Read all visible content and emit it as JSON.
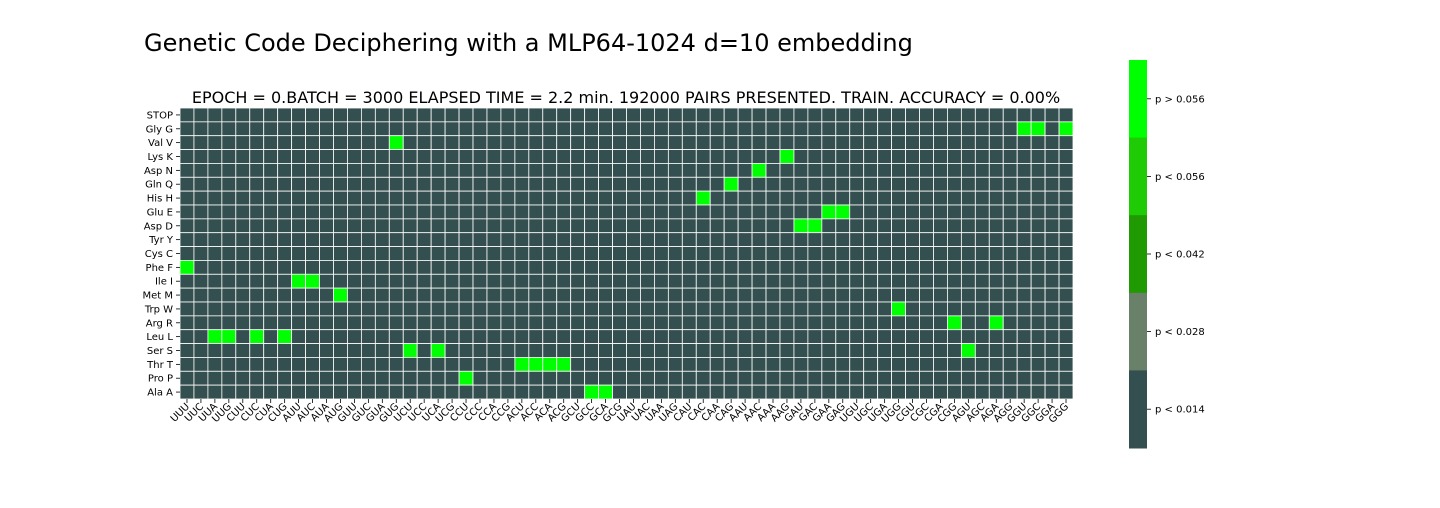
{
  "page_title": "Genetic Code Deciphering with a MLP64-1024 d=10 embedding",
  "chart_data": {
    "type": "heatmap",
    "title": "EPOCH =  0.BATCH = 3000 ELAPSED TIME = 2.2 min.   192000 PAIRS PRESENTED.  TRAIN. ACCURACY = 0.00%",
    "xlabel": "",
    "ylabel": "",
    "grid": true,
    "x_categories": [
      "UUU",
      "UUC",
      "UUA",
      "UUG",
      "CUU",
      "CUC",
      "CUA",
      "CUG",
      "AUU",
      "AUC",
      "AUA",
      "AUG",
      "GUU",
      "GUC",
      "GUA",
      "GUG",
      "UCU",
      "UCC",
      "UCA",
      "UCG",
      "CCU",
      "CCC",
      "CCA",
      "CCG",
      "ACU",
      "ACC",
      "ACA",
      "ACG",
      "GCU",
      "GCC",
      "GCA",
      "GCG",
      "UAU",
      "UAC",
      "UAA",
      "UAG",
      "CAU",
      "CAC",
      "CAA",
      "CAG",
      "AAU",
      "AAC",
      "AAA",
      "AAG",
      "GAU",
      "GAC",
      "GAA",
      "GAG",
      "UGU",
      "UGC",
      "UGA",
      "UGG",
      "CGU",
      "CGC",
      "CGA",
      "CGG",
      "AGU",
      "AGC",
      "AGA",
      "AGG",
      "GGU",
      "GGC",
      "GGA",
      "GGG"
    ],
    "y_categories": [
      "STOP",
      "Gly G",
      "Val V",
      "Lys K",
      "Asp N",
      "Gln Q",
      "His H",
      "Glu E",
      "Asp D",
      "Tyr Y",
      "Cys C",
      "Phe F",
      "Ile I",
      "Met M",
      "Trp W",
      "Arg R",
      "Leu L",
      "Ser S",
      "Thr T",
      "Pro P",
      "Ala A"
    ],
    "highlighted_cells": [
      {
        "row": "Gly G",
        "col": "GGU"
      },
      {
        "row": "Gly G",
        "col": "GGC"
      },
      {
        "row": "Gly G",
        "col": "GGG"
      },
      {
        "row": "Val V",
        "col": "GUG"
      },
      {
        "row": "Lys K",
        "col": "AAG"
      },
      {
        "row": "Asp N",
        "col": "AAC"
      },
      {
        "row": "Gln Q",
        "col": "CAG"
      },
      {
        "row": "His H",
        "col": "CAC"
      },
      {
        "row": "Glu E",
        "col": "GAA"
      },
      {
        "row": "Glu E",
        "col": "GAG"
      },
      {
        "row": "Asp D",
        "col": "GAU"
      },
      {
        "row": "Asp D",
        "col": "GAC"
      },
      {
        "row": "Phe F",
        "col": "UUU"
      },
      {
        "row": "Ile I",
        "col": "AUU"
      },
      {
        "row": "Ile I",
        "col": "AUC"
      },
      {
        "row": "Met M",
        "col": "AUG"
      },
      {
        "row": "Trp W",
        "col": "UGG"
      },
      {
        "row": "Arg R",
        "col": "CGG"
      },
      {
        "row": "Arg R",
        "col": "AGA"
      },
      {
        "row": "Leu L",
        "col": "UUA"
      },
      {
        "row": "Leu L",
        "col": "UUG"
      },
      {
        "row": "Leu L",
        "col": "CUC"
      },
      {
        "row": "Leu L",
        "col": "CUG"
      },
      {
        "row": "Ser S",
        "col": "UCU"
      },
      {
        "row": "Ser S",
        "col": "UCA"
      },
      {
        "row": "Ser S",
        "col": "AGU"
      },
      {
        "row": "Thr T",
        "col": "ACU"
      },
      {
        "row": "Thr T",
        "col": "ACC"
      },
      {
        "row": "Thr T",
        "col": "ACA"
      },
      {
        "row": "Thr T",
        "col": "ACG"
      },
      {
        "row": "Pro P",
        "col": "CCU"
      },
      {
        "row": "Ala A",
        "col": "GCC"
      },
      {
        "row": "Ala A",
        "col": "GCA"
      }
    ],
    "highlight_color": "#00ff00",
    "base_color": "#344f4f",
    "gridline_color": "#ffffff",
    "colorbar": {
      "bins": [
        {
          "label": "p > 0.056",
          "color": "#00ff00"
        },
        {
          "label": "p < 0.056",
          "color": "#1fcb05"
        },
        {
          "label": "p < 0.042",
          "color": "#1f9a03"
        },
        {
          "label": "p < 0.028",
          "color": "#698069"
        },
        {
          "label": "p < 0.014",
          "color": "#344f4f"
        }
      ]
    }
  }
}
